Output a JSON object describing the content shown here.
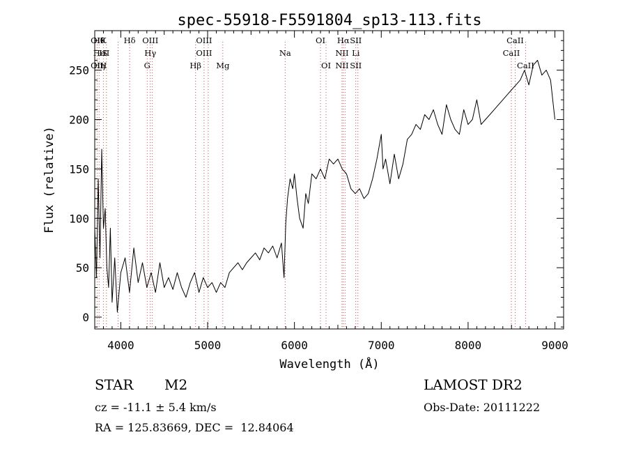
{
  "chart_data": {
    "type": "line",
    "title": "spec-55918-F5591804_sp13-113.fits",
    "xlabel": "Wavelength (Å)",
    "ylabel": "Flux (relative)",
    "xlim": [
      3700,
      9100
    ],
    "ylim": [
      -12,
      290
    ],
    "x_ticks": [
      4000,
      5000,
      6000,
      7000,
      8000,
      9000
    ],
    "y_ticks": [
      0,
      50,
      100,
      150,
      200,
      250
    ],
    "grid": false,
    "legend": "none",
    "series": [
      {
        "x": [
          3700,
          3720,
          3740,
          3760,
          3780,
          3800,
          3820,
          3840,
          3860,
          3880,
          3900,
          3930,
          3960,
          4000,
          4050,
          4100,
          4150,
          4200,
          4250,
          4300,
          4350,
          4400,
          4450,
          4500,
          4550,
          4600,
          4650,
          4700,
          4750,
          4800,
          4850,
          4900,
          4950,
          5000,
          5050,
          5100,
          5150,
          5200,
          5250,
          5300,
          5350,
          5400,
          5450,
          5500,
          5550,
          5600,
          5650,
          5700,
          5750,
          5800,
          5850,
          5880,
          5900,
          5920,
          5950,
          5980,
          6000,
          6030,
          6060,
          6100,
          6130,
          6160,
          6200,
          6250,
          6300,
          6350,
          6400,
          6450,
          6500,
          6550,
          6600,
          6650,
          6700,
          6750,
          6800,
          6850,
          6900,
          6950,
          7000,
          7020,
          7050,
          7100,
          7150,
          7200,
          7250,
          7300,
          7350,
          7400,
          7450,
          7500,
          7550,
          7600,
          7650,
          7700,
          7750,
          7800,
          7850,
          7900,
          7950,
          8000,
          8050,
          8100,
          8150,
          8200,
          8250,
          8300,
          8350,
          8400,
          8450,
          8500,
          8550,
          8600,
          8650,
          8700,
          8750,
          8800,
          8850,
          8900,
          8950,
          9000
        ],
        "y": [
          90,
          40,
          140,
          60,
          170,
          90,
          110,
          50,
          30,
          90,
          15,
          60,
          5,
          45,
          60,
          25,
          70,
          35,
          55,
          30,
          45,
          25,
          55,
          30,
          40,
          28,
          45,
          30,
          20,
          35,
          45,
          25,
          40,
          30,
          35,
          25,
          35,
          30,
          45,
          50,
          55,
          48,
          55,
          60,
          65,
          58,
          70,
          65,
          72,
          60,
          75,
          40,
          95,
          120,
          140,
          130,
          145,
          120,
          100,
          90,
          125,
          115,
          145,
          140,
          150,
          140,
          160,
          155,
          160,
          150,
          145,
          130,
          125,
          130,
          120,
          125,
          140,
          160,
          185,
          150,
          160,
          135,
          165,
          140,
          155,
          180,
          185,
          195,
          190,
          205,
          200,
          210,
          195,
          185,
          215,
          200,
          190,
          185,
          210,
          195,
          200,
          220,
          195,
          200,
          205,
          210,
          215,
          220,
          225,
          230,
          235,
          240,
          250,
          235,
          255,
          260,
          245,
          250,
          240,
          200
        ]
      }
    ],
    "lines": [
      {
        "x": 3727,
        "top": "OII",
        "mid": "",
        "bottom": "OII"
      },
      {
        "x": 3750,
        "top": "Hθ",
        "mid": "He",
        "bottom": "Hη"
      },
      {
        "x": 3799,
        "top": "K",
        "mid": "IS",
        "bottom": "H"
      },
      {
        "x": 3835,
        "top": "",
        "mid": "II",
        "bottom": ""
      },
      {
        "x": 3969,
        "top": "",
        "mid": "",
        "bottom": ""
      },
      {
        "x": 4102,
        "top": "Hδ",
        "mid": "",
        "bottom": ""
      },
      {
        "x": 4304,
        "top": "",
        "mid": "",
        "bottom": "G"
      },
      {
        "x": 4340,
        "top": "OIII",
        "mid": "Hγ",
        "bottom": ""
      },
      {
        "x": 4363,
        "top": "",
        "mid": "",
        "bottom": ""
      },
      {
        "x": 4861,
        "top": "",
        "mid": "",
        "bottom": "Hβ"
      },
      {
        "x": 4959,
        "top": "OIII",
        "mid": "OIII",
        "bottom": ""
      },
      {
        "x": 5007,
        "top": "",
        "mid": "",
        "bottom": ""
      },
      {
        "x": 5175,
        "top": "",
        "mid": "",
        "bottom": "Mg"
      },
      {
        "x": 5893,
        "top": "",
        "mid": "Na",
        "bottom": ""
      },
      {
        "x": 6300,
        "top": "OI",
        "mid": "",
        "bottom": ""
      },
      {
        "x": 6364,
        "top": "",
        "mid": "",
        "bottom": "OI"
      },
      {
        "x": 6548,
        "top": "",
        "mid": "NII",
        "bottom": "NII"
      },
      {
        "x": 6563,
        "top": "Hα",
        "mid": "",
        "bottom": ""
      },
      {
        "x": 6583,
        "top": "",
        "mid": "",
        "bottom": ""
      },
      {
        "x": 6707,
        "top": "SII",
        "mid": "Li",
        "bottom": "SII"
      },
      {
        "x": 6731,
        "top": "",
        "mid": "",
        "bottom": ""
      },
      {
        "x": 8498,
        "top": "",
        "mid": "CaII",
        "bottom": ""
      },
      {
        "x": 8542,
        "top": "CaII",
        "mid": "",
        "bottom": ""
      },
      {
        "x": 8662,
        "top": "",
        "mid": "",
        "bottom": "CaII"
      }
    ]
  },
  "info": {
    "class": "STAR",
    "subclass": "M2",
    "survey": "LAMOST DR2",
    "cz": "cz = -11.1 ± 5.4 km/s",
    "obs_date": "Obs-Date: 20111222",
    "coords": "RA = 125.83669, DEC =  12.84064"
  }
}
